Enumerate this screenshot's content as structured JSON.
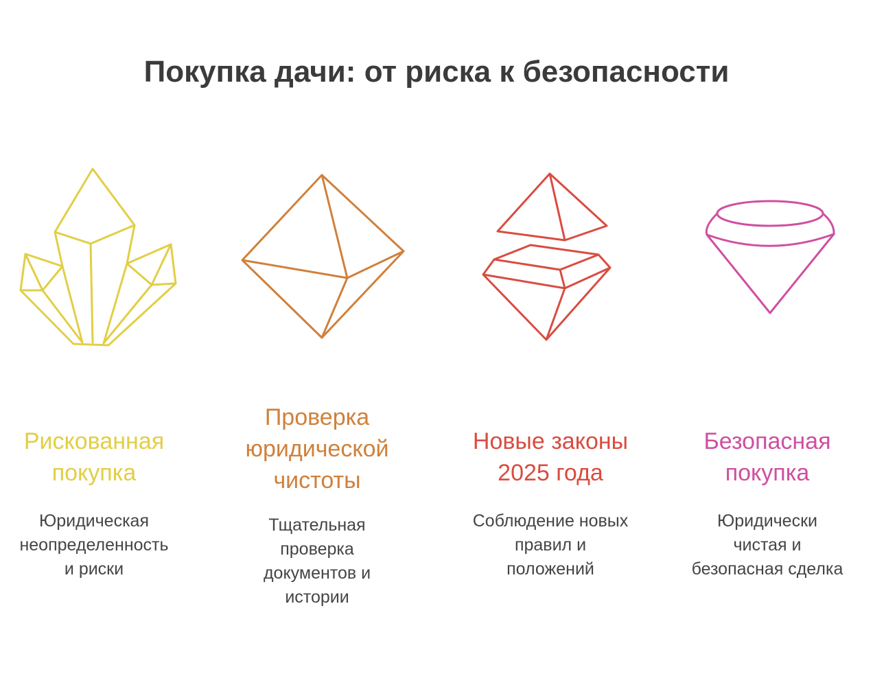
{
  "title": "Покупка дачи: от риска к безопасности",
  "stages": [
    {
      "heading": [
        "Рискованная",
        "покупка"
      ],
      "description": [
        "Юридическая",
        "неопределенность",
        "и риски"
      ],
      "color": "#E2CE45",
      "icon": "crystal-cluster-icon"
    },
    {
      "heading": [
        "Проверка",
        "юридической",
        "чистоты"
      ],
      "description": [
        "Тщательная",
        "проверка",
        "документов и",
        "истории"
      ],
      "color": "#D0803A",
      "icon": "octahedron-icon"
    },
    {
      "heading": [
        "Новые законы",
        "2025 года"
      ],
      "description": [
        "Соблюдение новых",
        "правил и",
        "положений"
      ],
      "color": "#D94C40",
      "icon": "split-gem-icon"
    },
    {
      "heading": [
        "Безопасная",
        "покупка"
      ],
      "description": [
        "Юридически",
        "чистая и",
        "безопасная сделка"
      ],
      "color": "#CF4FA0",
      "icon": "diamond-icon"
    }
  ]
}
